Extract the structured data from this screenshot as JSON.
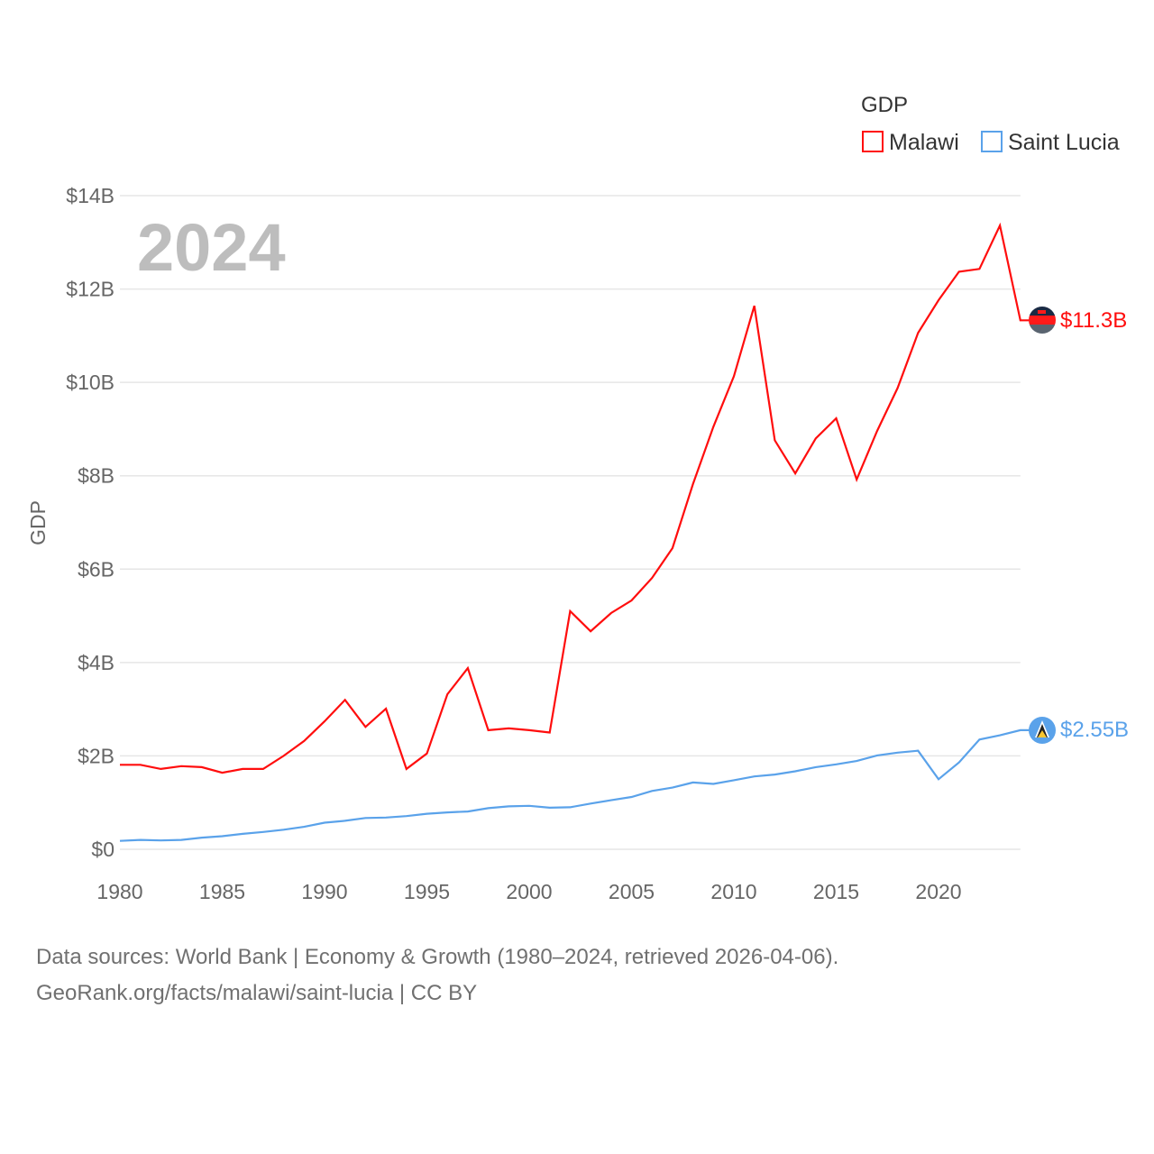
{
  "chart_data": {
    "type": "line",
    "title": "",
    "xlabel": "",
    "ylabel": "GDP",
    "xlim": [
      1980,
      2024
    ],
    "ylim": [
      0,
      14
    ],
    "y_unit": "billion USD",
    "grid": true,
    "legend": {
      "title": "GDP",
      "placement": "top-right"
    },
    "year_label": "2024",
    "x_ticks": [
      1980,
      1985,
      1990,
      1995,
      2000,
      2005,
      2010,
      2015,
      2020
    ],
    "x_tick_labels": [
      "1980",
      "1985",
      "1990",
      "1995",
      "2000",
      "2005",
      "2010",
      "2015",
      "2020"
    ],
    "y_ticks": [
      0,
      2,
      4,
      6,
      8,
      10,
      12,
      14
    ],
    "y_tick_labels": [
      "$0",
      "$2B",
      "$4B",
      "$6B",
      "$8B",
      "$10B",
      "$12B",
      "$14B"
    ],
    "x": [
      1980,
      1981,
      1982,
      1983,
      1984,
      1985,
      1986,
      1987,
      1988,
      1989,
      1990,
      1991,
      1992,
      1993,
      1994,
      1995,
      1996,
      1997,
      1998,
      1999,
      2000,
      2001,
      2002,
      2003,
      2004,
      2005,
      2006,
      2007,
      2008,
      2009,
      2010,
      2011,
      2012,
      2013,
      2014,
      2015,
      2016,
      2017,
      2018,
      2019,
      2020,
      2021,
      2022,
      2023,
      2024
    ],
    "series": [
      {
        "name": "Malawi",
        "color": "#ff0d0d",
        "end_label": "$11.3B",
        "flag": "malawi-flag",
        "values": [
          1.81,
          1.81,
          1.72,
          1.78,
          1.76,
          1.64,
          1.72,
          1.72,
          2.0,
          2.32,
          2.74,
          3.2,
          2.62,
          3.01,
          1.72,
          2.05,
          3.32,
          3.88,
          2.55,
          2.59,
          2.55,
          2.5,
          5.1,
          4.67,
          5.06,
          5.33,
          5.81,
          6.45,
          7.82,
          9.05,
          10.13,
          11.64,
          8.76,
          8.05,
          8.8,
          9.23,
          7.92,
          8.96,
          9.88,
          11.06,
          11.76,
          12.37,
          12.43,
          13.36,
          11.33
        ]
      },
      {
        "name": "Saint Lucia",
        "color": "#5aa2ea",
        "end_label": "$2.55B",
        "flag": "saint-lucia-flag",
        "values": [
          0.18,
          0.2,
          0.19,
          0.2,
          0.25,
          0.28,
          0.33,
          0.37,
          0.42,
          0.48,
          0.57,
          0.61,
          0.67,
          0.68,
          0.71,
          0.76,
          0.79,
          0.81,
          0.88,
          0.92,
          0.93,
          0.89,
          0.9,
          0.98,
          1.05,
          1.12,
          1.25,
          1.32,
          1.43,
          1.4,
          1.48,
          1.56,
          1.6,
          1.67,
          1.76,
          1.82,
          1.89,
          2.01,
          2.07,
          2.11,
          1.5,
          1.86,
          2.35,
          2.44,
          2.55
        ]
      }
    ]
  },
  "footer": {
    "line1": "Data sources: World Bank | Economy & Growth (1980–2024, retrieved 2026-04-06).",
    "line2": "GeoRank.org/facts/malawi/saint-lucia | CC BY"
  }
}
